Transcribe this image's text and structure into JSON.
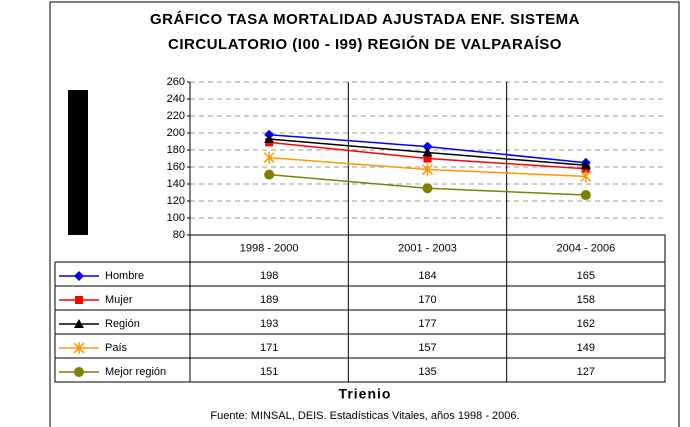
{
  "chart_data": {
    "type": "line",
    "title": [
      "GRÁFICO TASA MORTALIDAD AJUSTADA ENF. SISTEMA",
      "CIRCULATORIO (I00 - I99) REGIÓN DE VALPARAÍSO"
    ],
    "categories": [
      "1998 - 2000",
      "2001 - 2003",
      "2004 - 2006"
    ],
    "series": [
      {
        "name": "Hombre",
        "color": "#0000ff",
        "marker": "diamond",
        "values": [
          198,
          184,
          165
        ]
      },
      {
        "name": "Mujer",
        "color": "#ff0000",
        "marker": "square",
        "values": [
          189,
          170,
          158
        ]
      },
      {
        "name": "Región",
        "color": "#000000",
        "marker": "triangle",
        "values": [
          193,
          177,
          162
        ]
      },
      {
        "name": "País",
        "color": "#ff9900",
        "marker": "asterisk",
        "values": [
          171,
          157,
          149
        ]
      },
      {
        "name": "Mejor región",
        "color": "#808000",
        "marker": "circle",
        "values": [
          151,
          135,
          127
        ]
      }
    ],
    "ylim": [
      80,
      260
    ],
    "yticks": [
      80,
      100,
      120,
      140,
      160,
      180,
      200,
      220,
      240,
      260
    ],
    "grid": true,
    "xlabel": "Trienio",
    "source": "Fuente: MINSAL, DEIS. Estadísticas Vitales, años 1998 - 2006."
  }
}
